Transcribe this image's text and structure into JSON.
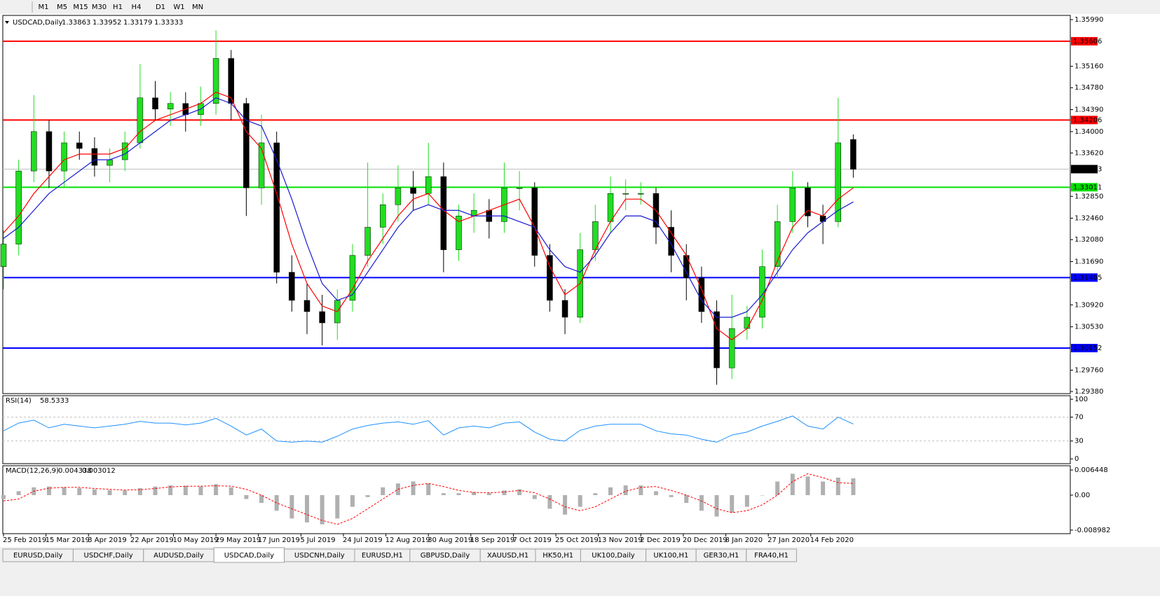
{
  "toolbar": {
    "timeframes": [
      "M1",
      "M5",
      "M15",
      "M30",
      "H1",
      "H4",
      "D1",
      "W1",
      "MN"
    ]
  },
  "price_chart": {
    "symbol": "USDCAD,Daily",
    "quote": [
      1.33863,
      1.33952,
      1.33179,
      1.33333
    ],
    "ylim": [
      1.29343,
      1.36065
    ],
    "yticks": [
      {
        "value": 1.3599,
        "label": "1.35990"
      },
      {
        "value": 1.3516,
        "label": "1.35160"
      },
      {
        "value": 1.3478,
        "label": "1.34780"
      },
      {
        "value": 1.3439,
        "label": "1.34390"
      },
      {
        "value": 1.34,
        "label": "1.34000"
      },
      {
        "value": 1.3362,
        "label": "1.33620"
      },
      {
        "value": 1.3285,
        "label": "1.32850"
      },
      {
        "value": 1.3246,
        "label": "1.32460"
      },
      {
        "value": 1.3208,
        "label": "1.32080"
      },
      {
        "value": 1.3169,
        "label": "1.31690"
      },
      {
        "value": 1.3092,
        "label": "1.30920"
      },
      {
        "value": 1.3053,
        "label": "1.30530"
      },
      {
        "value": 1.2976,
        "label": "1.29760"
      },
      {
        "value": 1.2938,
        "label": "1.29380"
      }
    ],
    "levels": [
      {
        "value": 1.35606,
        "color": "#ff0000"
      },
      {
        "value": 1.34206,
        "color": "#ff0000"
      },
      {
        "value": 1.33011,
        "color": "#00e000"
      },
      {
        "value": 1.31405,
        "color": "#0000ff"
      },
      {
        "value": 1.30152,
        "color": "#0000ff"
      }
    ],
    "current": 1.33333,
    "candles": {
      "open": [
        1.316,
        1.32,
        1.333,
        1.34,
        1.333,
        1.338,
        1.337,
        1.334,
        1.335,
        1.338,
        1.346,
        1.344,
        1.345,
        1.343,
        1.345,
        1.353,
        1.345,
        1.33,
        1.338,
        1.315,
        1.31,
        1.308,
        1.306,
        1.31,
        1.318,
        1.323,
        1.327,
        1.33,
        1.329,
        1.332,
        1.319,
        1.325,
        1.326,
        1.324,
        1.33,
        1.33,
        1.318,
        1.31,
        1.307,
        1.319,
        1.324,
        1.329,
        1.329,
        1.329,
        1.323,
        1.318,
        1.314,
        1.308,
        1.298,
        1.305,
        1.307,
        1.316,
        1.324,
        1.33,
        1.325,
        1.324,
        1.3386
      ],
      "high": [
        1.3225,
        1.335,
        1.3465,
        1.342,
        1.34,
        1.34,
        1.339,
        1.337,
        1.34,
        1.352,
        1.349,
        1.347,
        1.347,
        1.348,
        1.358,
        1.3545,
        1.346,
        1.343,
        1.34,
        1.318,
        1.313,
        1.311,
        1.312,
        1.32,
        1.3345,
        1.329,
        1.334,
        1.333,
        1.338,
        1.3345,
        1.327,
        1.329,
        1.328,
        1.3345,
        1.333,
        1.331,
        1.32,
        1.312,
        1.322,
        1.327,
        1.332,
        1.3315,
        1.331,
        1.33,
        1.326,
        1.32,
        1.316,
        1.31,
        1.311,
        1.309,
        1.319,
        1.327,
        1.333,
        1.331,
        1.327,
        1.346,
        1.3395
      ],
      "low": [
        1.312,
        1.318,
        1.331,
        1.33,
        1.33,
        1.335,
        1.332,
        1.331,
        1.333,
        1.337,
        1.342,
        1.341,
        1.34,
        1.341,
        1.343,
        1.342,
        1.325,
        1.327,
        1.313,
        1.308,
        1.304,
        1.302,
        1.303,
        1.308,
        1.316,
        1.32,
        1.324,
        1.326,
        1.327,
        1.315,
        1.317,
        1.322,
        1.321,
        1.322,
        1.326,
        1.316,
        1.308,
        1.304,
        1.306,
        1.317,
        1.322,
        1.326,
        1.327,
        1.32,
        1.315,
        1.31,
        1.306,
        1.295,
        1.296,
        1.303,
        1.305,
        1.314,
        1.322,
        1.323,
        1.32,
        1.323,
        1.3318
      ],
      "close": [
        1.32,
        1.333,
        1.34,
        1.333,
        1.338,
        1.337,
        1.334,
        1.335,
        1.338,
        1.346,
        1.344,
        1.345,
        1.343,
        1.345,
        1.353,
        1.345,
        1.33,
        1.338,
        1.315,
        1.31,
        1.308,
        1.306,
        1.31,
        1.318,
        1.323,
        1.327,
        1.33,
        1.329,
        1.332,
        1.319,
        1.325,
        1.326,
        1.324,
        1.33,
        1.33,
        1.318,
        1.31,
        1.307,
        1.319,
        1.324,
        1.329,
        1.329,
        1.329,
        1.323,
        1.318,
        1.314,
        1.308,
        1.298,
        1.305,
        1.307,
        1.316,
        1.324,
        1.33,
        1.325,
        1.324,
        1.338,
        1.3333
      ],
      "up_color": "#22dd22",
      "down_color": "#000000"
    },
    "ma": [
      {
        "color": "#ff0000",
        "values": [
          1.322,
          1.325,
          1.329,
          1.332,
          1.335,
          1.336,
          1.336,
          1.336,
          1.337,
          1.34,
          1.342,
          1.343,
          1.344,
          1.345,
          1.347,
          1.346,
          1.34,
          1.337,
          1.329,
          1.32,
          1.313,
          1.309,
          1.308,
          1.312,
          1.317,
          1.321,
          1.325,
          1.328,
          1.329,
          1.326,
          1.324,
          1.325,
          1.326,
          1.327,
          1.328,
          1.323,
          1.316,
          1.311,
          1.313,
          1.319,
          1.324,
          1.328,
          1.328,
          1.326,
          1.322,
          1.318,
          1.312,
          1.305,
          1.303,
          1.305,
          1.31,
          1.317,
          1.323,
          1.326,
          1.325,
          1.328,
          1.33
        ]
      },
      {
        "color": "#1a1ad0",
        "values": [
          1.321,
          1.323,
          1.326,
          1.329,
          1.331,
          1.333,
          1.335,
          1.335,
          1.336,
          1.338,
          1.34,
          1.342,
          1.343,
          1.344,
          1.346,
          1.345,
          1.342,
          1.341,
          1.335,
          1.328,
          1.32,
          1.313,
          1.31,
          1.311,
          1.315,
          1.319,
          1.323,
          1.326,
          1.327,
          1.326,
          1.326,
          1.325,
          1.325,
          1.325,
          1.324,
          1.323,
          1.319,
          1.316,
          1.315,
          1.318,
          1.322,
          1.325,
          1.325,
          1.324,
          1.32,
          1.315,
          1.31,
          1.307,
          1.307,
          1.308,
          1.311,
          1.315,
          1.319,
          1.322,
          1.324,
          1.326,
          1.3275
        ]
      }
    ]
  },
  "rsi_panel": {
    "label": "RSI(14)",
    "value": 58.5333,
    "ylim": [
      -8,
      106
    ],
    "yticks": [
      100,
      70,
      30,
      0
    ],
    "levels": [
      70,
      30
    ],
    "color": "#1e90ff",
    "values": [
      47,
      60,
      65,
      52,
      58,
      55,
      52,
      55,
      58,
      63,
      60,
      60,
      57,
      60,
      68,
      55,
      40,
      50,
      30,
      28,
      30,
      28,
      38,
      50,
      56,
      60,
      62,
      58,
      64,
      40,
      52,
      55,
      52,
      60,
      62,
      45,
      33,
      30,
      48,
      55,
      58,
      58,
      58,
      47,
      42,
      40,
      33,
      28,
      40,
      45,
      55,
      63,
      72,
      55,
      50,
      70,
      58.5
    ]
  },
  "macd_panel": {
    "label": "MACD(12,26,9)",
    "main": 0.004338,
    "signal_value": 0.003012,
    "ylim": [
      -0.0099,
      0.00755
    ],
    "yticks": [
      0.006448,
      {
        "value": 0,
        "label": "0.00"
      },
      -0.008982
    ],
    "histogram": [
      -0.001,
      0.001,
      0.002,
      0.0022,
      0.002,
      0.0018,
      0.0015,
      0.0013,
      0.0012,
      0.0018,
      0.0022,
      0.0025,
      0.0024,
      0.0022,
      0.0028,
      0.002,
      -0.001,
      -0.002,
      -0.004,
      -0.006,
      -0.007,
      -0.0075,
      -0.006,
      -0.003,
      -0.0005,
      0.002,
      0.003,
      0.0035,
      0.003,
      0.0005,
      0.0005,
      0.0008,
      0.0005,
      0.0012,
      0.0015,
      -0.001,
      -0.0035,
      -0.005,
      -0.003,
      0.0005,
      0.002,
      0.0025,
      0.0025,
      0.001,
      -0.0005,
      -0.002,
      -0.004,
      -0.0055,
      -0.0045,
      -0.003,
      0,
      0.0035,
      0.0055,
      0.0048,
      0.0035,
      0.0045,
      0.0043
    ],
    "signal": [
      -0.0015,
      -0.001,
      0.001,
      0.0018,
      0.002,
      0.002,
      0.0017,
      0.0015,
      0.0013,
      0.0014,
      0.0017,
      0.0021,
      0.0023,
      0.0023,
      0.0024,
      0.0023,
      0.0015,
      0,
      -0.002,
      -0.0035,
      -0.005,
      -0.0065,
      -0.0075,
      -0.006,
      -0.0035,
      -0.001,
      0.0015,
      0.0025,
      0.003,
      0.0022,
      0.0012,
      0.0007,
      0.0006,
      0.0008,
      0.0012,
      0.0006,
      -0.001,
      -0.003,
      -0.004,
      -0.003,
      -0.001,
      0.001,
      0.002,
      0.0022,
      0.0012,
      0,
      -0.0015,
      -0.0035,
      -0.0045,
      -0.004,
      -0.0025,
      0,
      0.0035,
      0.0055,
      0.0045,
      0.0032,
      0.003
    ],
    "hist_color": "#b0b0b0",
    "signal_color": "#ff0000"
  },
  "x_axis": {
    "labels": [
      "25 Feb 2019",
      "15 Mar 2019",
      "3 Apr 2019",
      "22 Apr 2019",
      "10 May 2019",
      "29 May 2019",
      "17 Jun 2019",
      "5 Jul 2019",
      "24 Jul 2019",
      "12 Aug 2019",
      "30 Aug 2019",
      "18 Sep 2019",
      "7 Oct 2019",
      "25 Oct 2019",
      "13 Nov 2019",
      "2 Dec 2019",
      "20 Dec 2019",
      "8 Jan 2020",
      "27 Jan 2020",
      "14 Feb 2020"
    ]
  },
  "tabs": {
    "items": [
      "EURUSD,Daily",
      "USDCHF,Daily",
      "AUDUSD,Daily",
      "USDCAD,Daily",
      "USDCNH,Daily",
      "EURUSD,H1",
      "GBPUSD,Daily",
      "XAUUSD,H1",
      "HK50,H1",
      "UK100,Daily",
      "UK100,H1",
      "GER30,H1",
      "FRA40,H1"
    ],
    "active": 3
  }
}
